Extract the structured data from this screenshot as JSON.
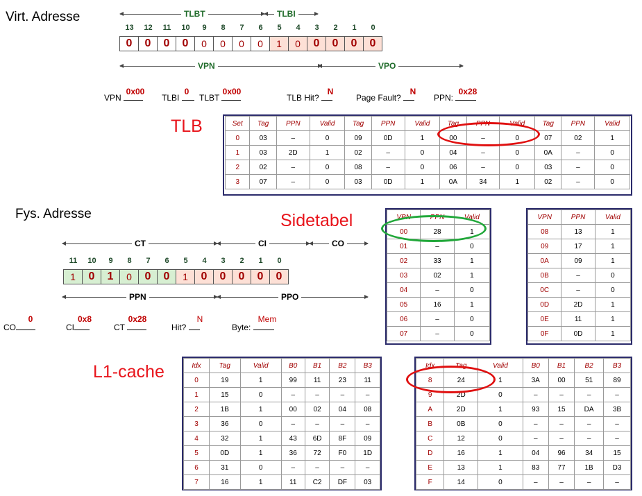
{
  "virt": {
    "label": "Virt. Adresse",
    "tlbt": "TLBT",
    "tlbi": "TLBI",
    "vpn": "VPN",
    "vpo": "VPO",
    "bit_numbers": [
      "13",
      "12",
      "11",
      "10",
      "9",
      "8",
      "7",
      "6",
      "5",
      "4",
      "3",
      "2",
      "1",
      "0"
    ],
    "bits": [
      "0",
      "0",
      "0",
      "0",
      "0",
      "0",
      "0",
      "0",
      "1",
      "0",
      "0",
      "0",
      "0",
      "0"
    ]
  },
  "virt_fields": {
    "vpn_label": "VPN",
    "vpn_value": "0x00",
    "tlbi_label": "TLBI",
    "tlbi_value": "0",
    "tlbt_label": "TLBT",
    "tlbt_value": "0x00",
    "hit_label": "TLB Hit?",
    "hit_value": "N",
    "pf_label": "Page Fault?",
    "pf_value": "N",
    "ppn_label": "PPN:",
    "ppn_value": "0x28"
  },
  "tlb": {
    "title": "TLB",
    "headers": [
      "Set",
      "Tag",
      "PPN",
      "Valid",
      "Tag",
      "PPN",
      "Valid",
      "Tag",
      "PPN",
      "Valid",
      "Tag",
      "PPN",
      "Valid"
    ],
    "rows": [
      [
        "0",
        "03",
        "–",
        "0",
        "09",
        "0D",
        "1",
        "00",
        "–",
        "0",
        "07",
        "02",
        "1"
      ],
      [
        "1",
        "03",
        "2D",
        "1",
        "02",
        "–",
        "0",
        "04",
        "–",
        "0",
        "0A",
        "–",
        "0"
      ],
      [
        "2",
        "02",
        "–",
        "0",
        "08",
        "–",
        "0",
        "06",
        "–",
        "0",
        "03",
        "–",
        "0"
      ],
      [
        "3",
        "07",
        "–",
        "0",
        "03",
        "0D",
        "1",
        "0A",
        "34",
        "1",
        "02",
        "–",
        "0"
      ]
    ]
  },
  "phys": {
    "label": "Fys. Adresse",
    "ct": "CT",
    "ci": "CI",
    "co": "CO",
    "ppn": "PPN",
    "ppo": "PPO",
    "bit_numbers": [
      "11",
      "10",
      "9",
      "8",
      "7",
      "6",
      "5",
      "4",
      "3",
      "2",
      "1",
      "0"
    ],
    "bits": [
      "1",
      "0",
      "1",
      "0",
      "0",
      "0",
      "1",
      "0",
      "0",
      "0",
      "0",
      "0"
    ]
  },
  "phys_fields": {
    "co_label": "CO",
    "co_value": "0",
    "ci_label": "CI",
    "ci_value": "0x8",
    "ct_label": "CT",
    "ct_value": "0x28",
    "hit_label": "Hit?",
    "hit_value": "N",
    "byte_label": "Byte:",
    "byte_value": "Mem"
  },
  "pagetable": {
    "title": "Sidetabel",
    "headers": [
      "VPN",
      "PPN",
      "Valid"
    ],
    "left": [
      [
        "00",
        "28",
        "1"
      ],
      [
        "01",
        "–",
        "0"
      ],
      [
        "02",
        "33",
        "1"
      ],
      [
        "03",
        "02",
        "1"
      ],
      [
        "04",
        "–",
        "0"
      ],
      [
        "05",
        "16",
        "1"
      ],
      [
        "06",
        "–",
        "0"
      ],
      [
        "07",
        "–",
        "0"
      ]
    ],
    "right": [
      [
        "08",
        "13",
        "1"
      ],
      [
        "09",
        "17",
        "1"
      ],
      [
        "0A",
        "09",
        "1"
      ],
      [
        "0B",
        "–",
        "0"
      ],
      [
        "0C",
        "–",
        "0"
      ],
      [
        "0D",
        "2D",
        "1"
      ],
      [
        "0E",
        "11",
        "1"
      ],
      [
        "0F",
        "0D",
        "1"
      ]
    ]
  },
  "cache": {
    "title": "L1-cache",
    "headers": [
      "Idx",
      "Tag",
      "Valid",
      "B0",
      "B1",
      "B2",
      "B3"
    ],
    "left": [
      [
        "0",
        "19",
        "1",
        "99",
        "11",
        "23",
        "11"
      ],
      [
        "1",
        "15",
        "0",
        "–",
        "–",
        "–",
        "–"
      ],
      [
        "2",
        "1B",
        "1",
        "00",
        "02",
        "04",
        "08"
      ],
      [
        "3",
        "36",
        "0",
        "–",
        "–",
        "–",
        "–"
      ],
      [
        "4",
        "32",
        "1",
        "43",
        "6D",
        "8F",
        "09"
      ],
      [
        "5",
        "0D",
        "1",
        "36",
        "72",
        "F0",
        "1D"
      ],
      [
        "6",
        "31",
        "0",
        "–",
        "–",
        "–",
        "–"
      ],
      [
        "7",
        "16",
        "1",
        "11",
        "C2",
        "DF",
        "03"
      ]
    ],
    "right": [
      [
        "8",
        "24",
        "1",
        "3A",
        "00",
        "51",
        "89"
      ],
      [
        "9",
        "2D",
        "0",
        "–",
        "–",
        "–",
        "–"
      ],
      [
        "A",
        "2D",
        "1",
        "93",
        "15",
        "DA",
        "3B"
      ],
      [
        "B",
        "0B",
        "0",
        "–",
        "–",
        "–",
        "–"
      ],
      [
        "C",
        "12",
        "0",
        "–",
        "–",
        "–",
        "–"
      ],
      [
        "D",
        "16",
        "1",
        "04",
        "96",
        "34",
        "15"
      ],
      [
        "E",
        "13",
        "1",
        "83",
        "77",
        "1B",
        "D3"
      ],
      [
        "F",
        "14",
        "0",
        "–",
        "–",
        "–",
        "–"
      ]
    ]
  }
}
